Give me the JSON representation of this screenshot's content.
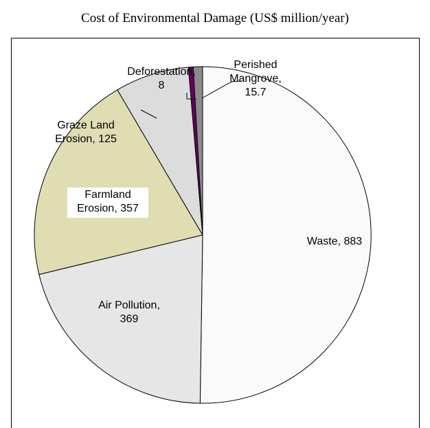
{
  "chart_data": {
    "type": "pie",
    "title": "Cost of Environmental Damage (US$ million/year)",
    "slices": [
      {
        "name": "Waste",
        "value": 883,
        "color": "#fafafa",
        "label_lines": [
          "Waste, 883"
        ]
      },
      {
        "name": "Air Pollution",
        "value": 369,
        "color": "#e6e6e6",
        "label_lines": [
          "Air Pollution,",
          "369"
        ]
      },
      {
        "name": "Farmland Erosion",
        "value": 357,
        "color": "#e0ddb3",
        "label_lines": [
          "Farmland",
          "Erosion, 357"
        ]
      },
      {
        "name": "Graze Land Erosion",
        "value": 125,
        "color": "#dcdcdc",
        "label_lines": [
          "Graze Land",
          "Erosion, 125"
        ]
      },
      {
        "name": "Deforestation",
        "value": 8,
        "color": "#660066",
        "label_lines": [
          "Deforestation,",
          "8"
        ]
      },
      {
        "name": "Perished Mangrove",
        "value": 15.7,
        "color": "#8c8c8c",
        "label_lines": [
          "Perished",
          "Mangrove,",
          "15.7"
        ]
      }
    ],
    "start_direction": "top",
    "direction": "clockwise",
    "legend": "none"
  }
}
